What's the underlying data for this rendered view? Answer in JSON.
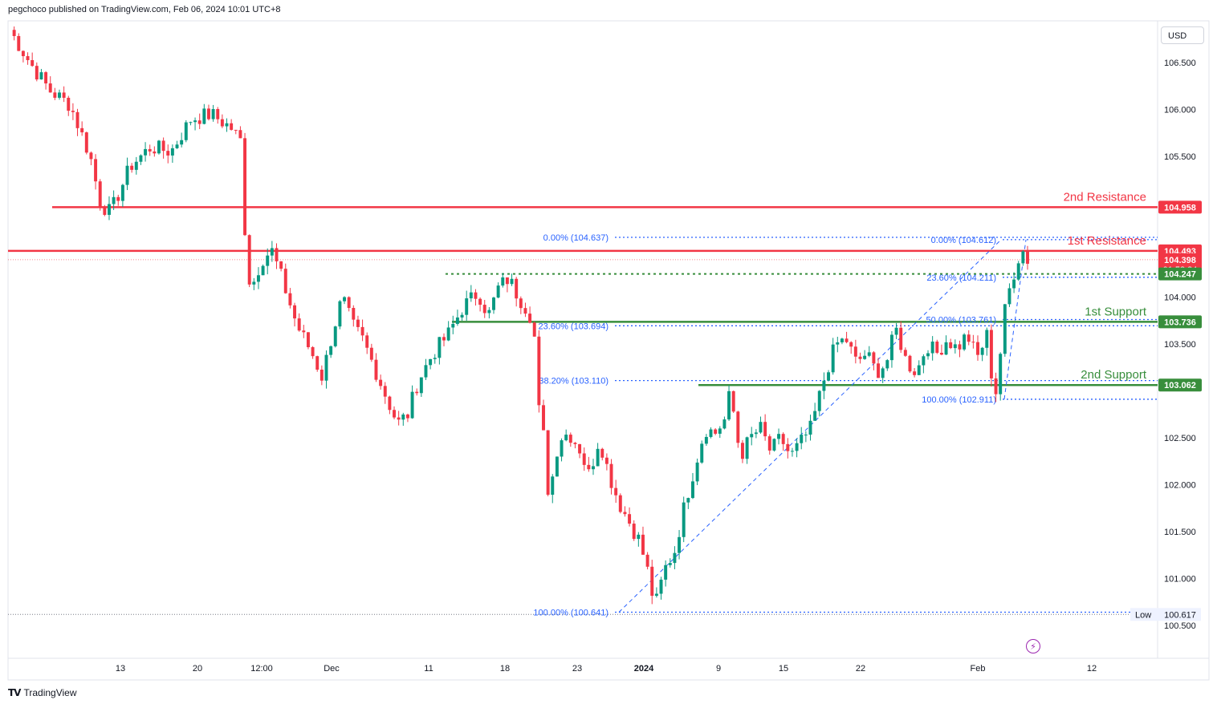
{
  "header": {
    "text": "pegchoco published on TradingView.com, Feb 06, 2024 10:01 UTC+8"
  },
  "footer": {
    "brand": "TradingView",
    "logo": "tradingview-logo"
  },
  "currency_button": "USD",
  "colors": {
    "up": "#089981",
    "down": "#f23645",
    "resistance": "#f23645",
    "support": "#388e3c",
    "fib": "#2962ff"
  },
  "chart_data": {
    "type": "candlestick",
    "y_tick_labels": [
      "106.500",
      "106.000",
      "105.500",
      "104.000",
      "103.500",
      "102.500",
      "102.000",
      "101.500",
      "101.000",
      "100.500"
    ],
    "x_tick_labels": [
      "13",
      "20",
      "12:00",
      "Dec",
      "11",
      "18",
      "23",
      "2024",
      "9",
      "15",
      "22",
      "Feb",
      "12"
    ],
    "ylim": [
      100.4,
      106.9
    ],
    "horizontal_levels": [
      {
        "label": "2nd Resistance",
        "price": 104.958,
        "tag": "104.958",
        "color": "#f23645"
      },
      {
        "label": "1st Resistance",
        "price": 104.493,
        "tag": "104.493",
        "color": "#f23645"
      },
      {
        "label": "1st Support",
        "price": 103.736,
        "tag": "103.736",
        "color": "#388e3c"
      },
      {
        "label": "2nd Support",
        "price": 103.062,
        "tag": "103.062",
        "color": "#388e3c"
      }
    ],
    "price_tags": [
      {
        "value": "104.398",
        "sub": "01:58:34",
        "color": "#f23645",
        "price": 104.398
      },
      {
        "value": "104.247",
        "color": "#388e3c",
        "price": 104.247
      },
      {
        "value": "100.617",
        "label": "Low",
        "price": 100.617
      }
    ],
    "fib_retracement_1": {
      "levels": [
        {
          "text": "0.00% (104.637)",
          "price": 104.637
        },
        {
          "text": "23.60% (103.694)",
          "price": 103.694
        },
        {
          "text": "38.20% (103.110)",
          "price": 103.11
        },
        {
          "text": "100.00% (100.641)",
          "price": 100.641
        }
      ]
    },
    "fib_retracement_2": {
      "levels": [
        {
          "text": "0.00% (104.612)",
          "price": 104.612
        },
        {
          "text": "23.60% (104.211)",
          "price": 104.211
        },
        {
          "text": "50.00% (103.761)",
          "price": 103.761
        },
        {
          "text": "100.00% (102.911)",
          "price": 102.911
        }
      ]
    },
    "pattern_seed": 7,
    "path_anchors": [
      [
        0,
        106.85
      ],
      [
        4,
        106.5
      ],
      [
        8,
        106.2
      ],
      [
        12,
        106.05
      ],
      [
        16,
        105.5
      ],
      [
        18,
        105.0
      ],
      [
        20,
        104.9
      ],
      [
        24,
        105.4
      ],
      [
        28,
        105.6
      ],
      [
        32,
        105.55
      ],
      [
        36,
        105.9
      ],
      [
        40,
        105.95
      ],
      [
        44,
        105.8
      ],
      [
        46,
        105.65
      ],
      [
        47,
        104.3
      ],
      [
        48,
        104.1
      ],
      [
        50,
        104.4
      ],
      [
        52,
        104.5
      ],
      [
        54,
        104.2
      ],
      [
        57,
        103.7
      ],
      [
        60,
        103.4
      ],
      [
        62,
        103.15
      ],
      [
        64,
        103.6
      ],
      [
        66,
        104.0
      ],
      [
        68,
        103.7
      ],
      [
        70,
        103.55
      ],
      [
        72,
        103.3
      ],
      [
        75,
        102.9
      ],
      [
        77,
        102.65
      ],
      [
        79,
        102.75
      ],
      [
        81,
        103.1
      ],
      [
        84,
        103.4
      ],
      [
        87,
        103.6
      ],
      [
        90,
        103.9
      ],
      [
        93,
        104.05
      ],
      [
        95,
        103.8
      ],
      [
        97,
        104.1
      ],
      [
        99,
        104.2
      ],
      [
        101,
        104.0
      ],
      [
        103,
        103.85
      ],
      [
        104,
        103.7
      ],
      [
        105,
        102.8
      ],
      [
        106,
        102.5
      ],
      [
        107,
        101.85
      ],
      [
        109,
        102.5
      ],
      [
        111,
        102.55
      ],
      [
        113,
        102.4
      ],
      [
        115,
        102.1
      ],
      [
        117,
        102.5
      ],
      [
        119,
        102.1
      ],
      [
        121,
        101.8
      ],
      [
        123,
        101.6
      ],
      [
        125,
        101.4
      ],
      [
        127,
        101.0
      ],
      [
        128,
        100.68
      ],
      [
        130,
        101.1
      ],
      [
        132,
        101.3
      ],
      [
        134,
        101.8
      ],
      [
        136,
        102.2
      ],
      [
        138,
        102.6
      ],
      [
        140,
        102.55
      ],
      [
        142,
        102.7
      ],
      [
        143,
        103.0
      ],
      [
        145,
        102.3
      ],
      [
        147,
        102.5
      ],
      [
        149,
        102.6
      ],
      [
        151,
        102.35
      ],
      [
        153,
        102.5
      ],
      [
        155,
        102.3
      ],
      [
        157,
        102.45
      ],
      [
        159,
        102.6
      ],
      [
        160,
        102.8
      ],
      [
        162,
        103.2
      ],
      [
        164,
        103.5
      ],
      [
        166,
        103.55
      ],
      [
        168,
        103.3
      ],
      [
        170,
        103.4
      ],
      [
        172,
        103.2
      ],
      [
        174,
        103.3
      ],
      [
        175,
        103.5
      ],
      [
        176,
        103.65
      ],
      [
        178,
        103.3
      ],
      [
        180,
        103.2
      ],
      [
        182,
        103.5
      ],
      [
        184,
        103.4
      ],
      [
        186,
        103.55
      ],
      [
        188,
        103.45
      ],
      [
        190,
        103.6
      ],
      [
        192,
        103.35
      ],
      [
        194,
        103.6
      ],
      [
        195,
        103.1
      ],
      [
        196,
        102.95
      ],
      [
        197,
        103.7
      ],
      [
        198,
        104.0
      ],
      [
        199,
        104.2
      ],
      [
        200,
        104.4
      ],
      [
        201,
        104.5
      ],
      [
        202,
        104.4
      ]
    ]
  }
}
